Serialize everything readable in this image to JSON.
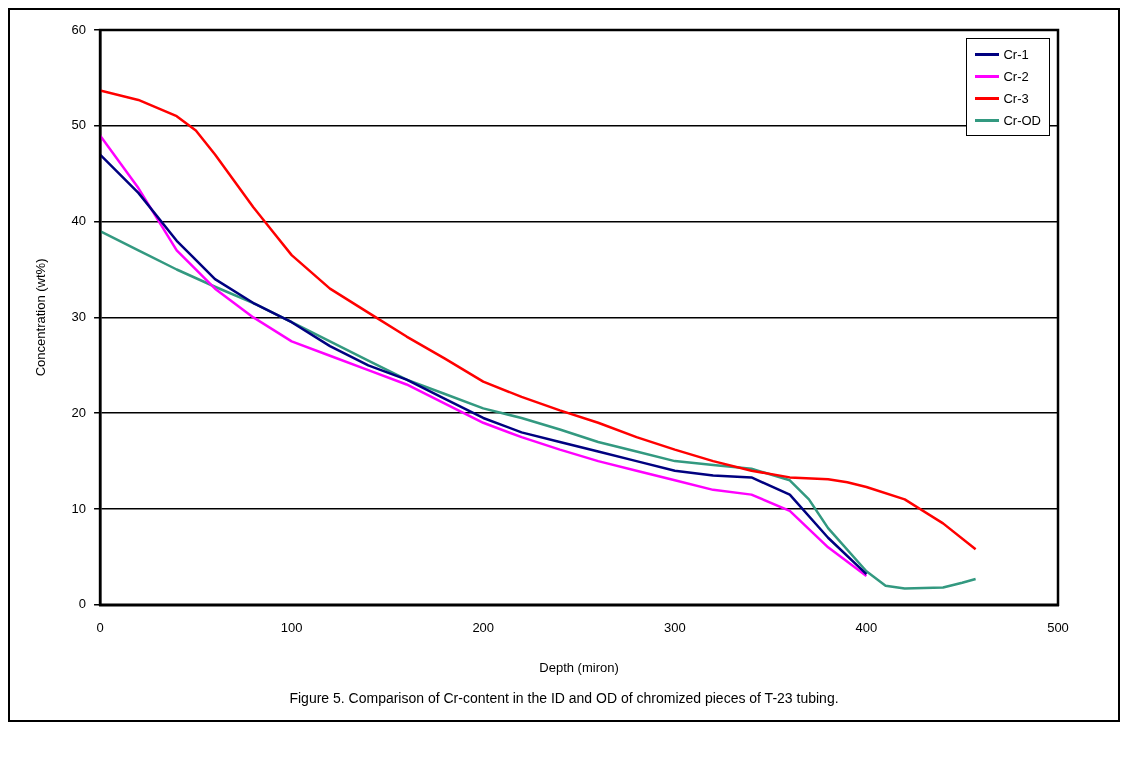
{
  "chart_data": {
    "type": "line",
    "xlabel": "Depth (miron)",
    "ylabel": "Concentration (wt%)",
    "annotations": [
      "Figure 5. Comparison of Cr-content in the ID and OD of chromized pieces of T-23 tubing."
    ],
    "xlim": [
      0,
      500
    ],
    "xticks": [
      0,
      100,
      200,
      300,
      400,
      500
    ],
    "ylim": [
      0,
      60
    ],
    "yticks": [
      0,
      10,
      20,
      30,
      40,
      50,
      60
    ],
    "grid": "y",
    "legend": "top right",
    "marker": "none",
    "line_style": "solid",
    "series": [
      {
        "name": "Cr-1",
        "color": "#000080",
        "x": [
          0,
          20,
          40,
          60,
          80,
          100,
          120,
          140,
          160,
          180,
          200,
          220,
          240,
          260,
          280,
          300,
          320,
          340,
          360,
          380,
          400
        ],
        "values": [
          47,
          43,
          38,
          34,
          31.5,
          29.5,
          27,
          25,
          23.5,
          21.5,
          19.5,
          18,
          17,
          16,
          15,
          14,
          13.5,
          13.3,
          11.5,
          7,
          3.2
        ]
      },
      {
        "name": "Cr-2",
        "color": "#ff00ff",
        "x": [
          0,
          20,
          40,
          60,
          80,
          100,
          120,
          140,
          160,
          180,
          200,
          220,
          240,
          260,
          280,
          300,
          320,
          340,
          360,
          380,
          400
        ],
        "values": [
          49,
          43.5,
          37,
          33,
          30,
          27.5,
          26,
          24.5,
          23,
          21,
          19,
          17.5,
          16.2,
          15,
          14,
          13,
          12,
          11.5,
          9.8,
          6,
          3
        ]
      },
      {
        "name": "Cr-3",
        "color": "#ff0000",
        "x": [
          0,
          20,
          40,
          50,
          60,
          80,
          90,
          100,
          120,
          140,
          160,
          180,
          200,
          220,
          240,
          260,
          280,
          300,
          320,
          340,
          360,
          380,
          390,
          400,
          420,
          440,
          457
        ],
        "values": [
          53.7,
          52.7,
          51,
          49.5,
          47,
          41.5,
          39,
          36.5,
          33,
          30.5,
          28,
          25.7,
          23.3,
          21.7,
          20.3,
          19,
          17.5,
          16.2,
          15,
          14,
          13.3,
          13.1,
          12.8,
          12.3,
          11,
          8.5,
          5.8
        ]
      },
      {
        "name": "Cr-OD",
        "color": "#339980",
        "x": [
          0,
          20,
          40,
          60,
          80,
          100,
          120,
          140,
          160,
          180,
          200,
          220,
          240,
          260,
          280,
          300,
          320,
          340,
          360,
          370,
          380,
          400,
          410,
          420,
          440,
          450,
          457
        ],
        "values": [
          39,
          37,
          35,
          33.2,
          31.5,
          29.5,
          27.5,
          25.5,
          23.5,
          22,
          20.5,
          19.5,
          18.3,
          17,
          16,
          15,
          14.6,
          14.2,
          13,
          11,
          8,
          3.5,
          2,
          1.7,
          1.8,
          2.3,
          2.7
        ]
      }
    ]
  }
}
